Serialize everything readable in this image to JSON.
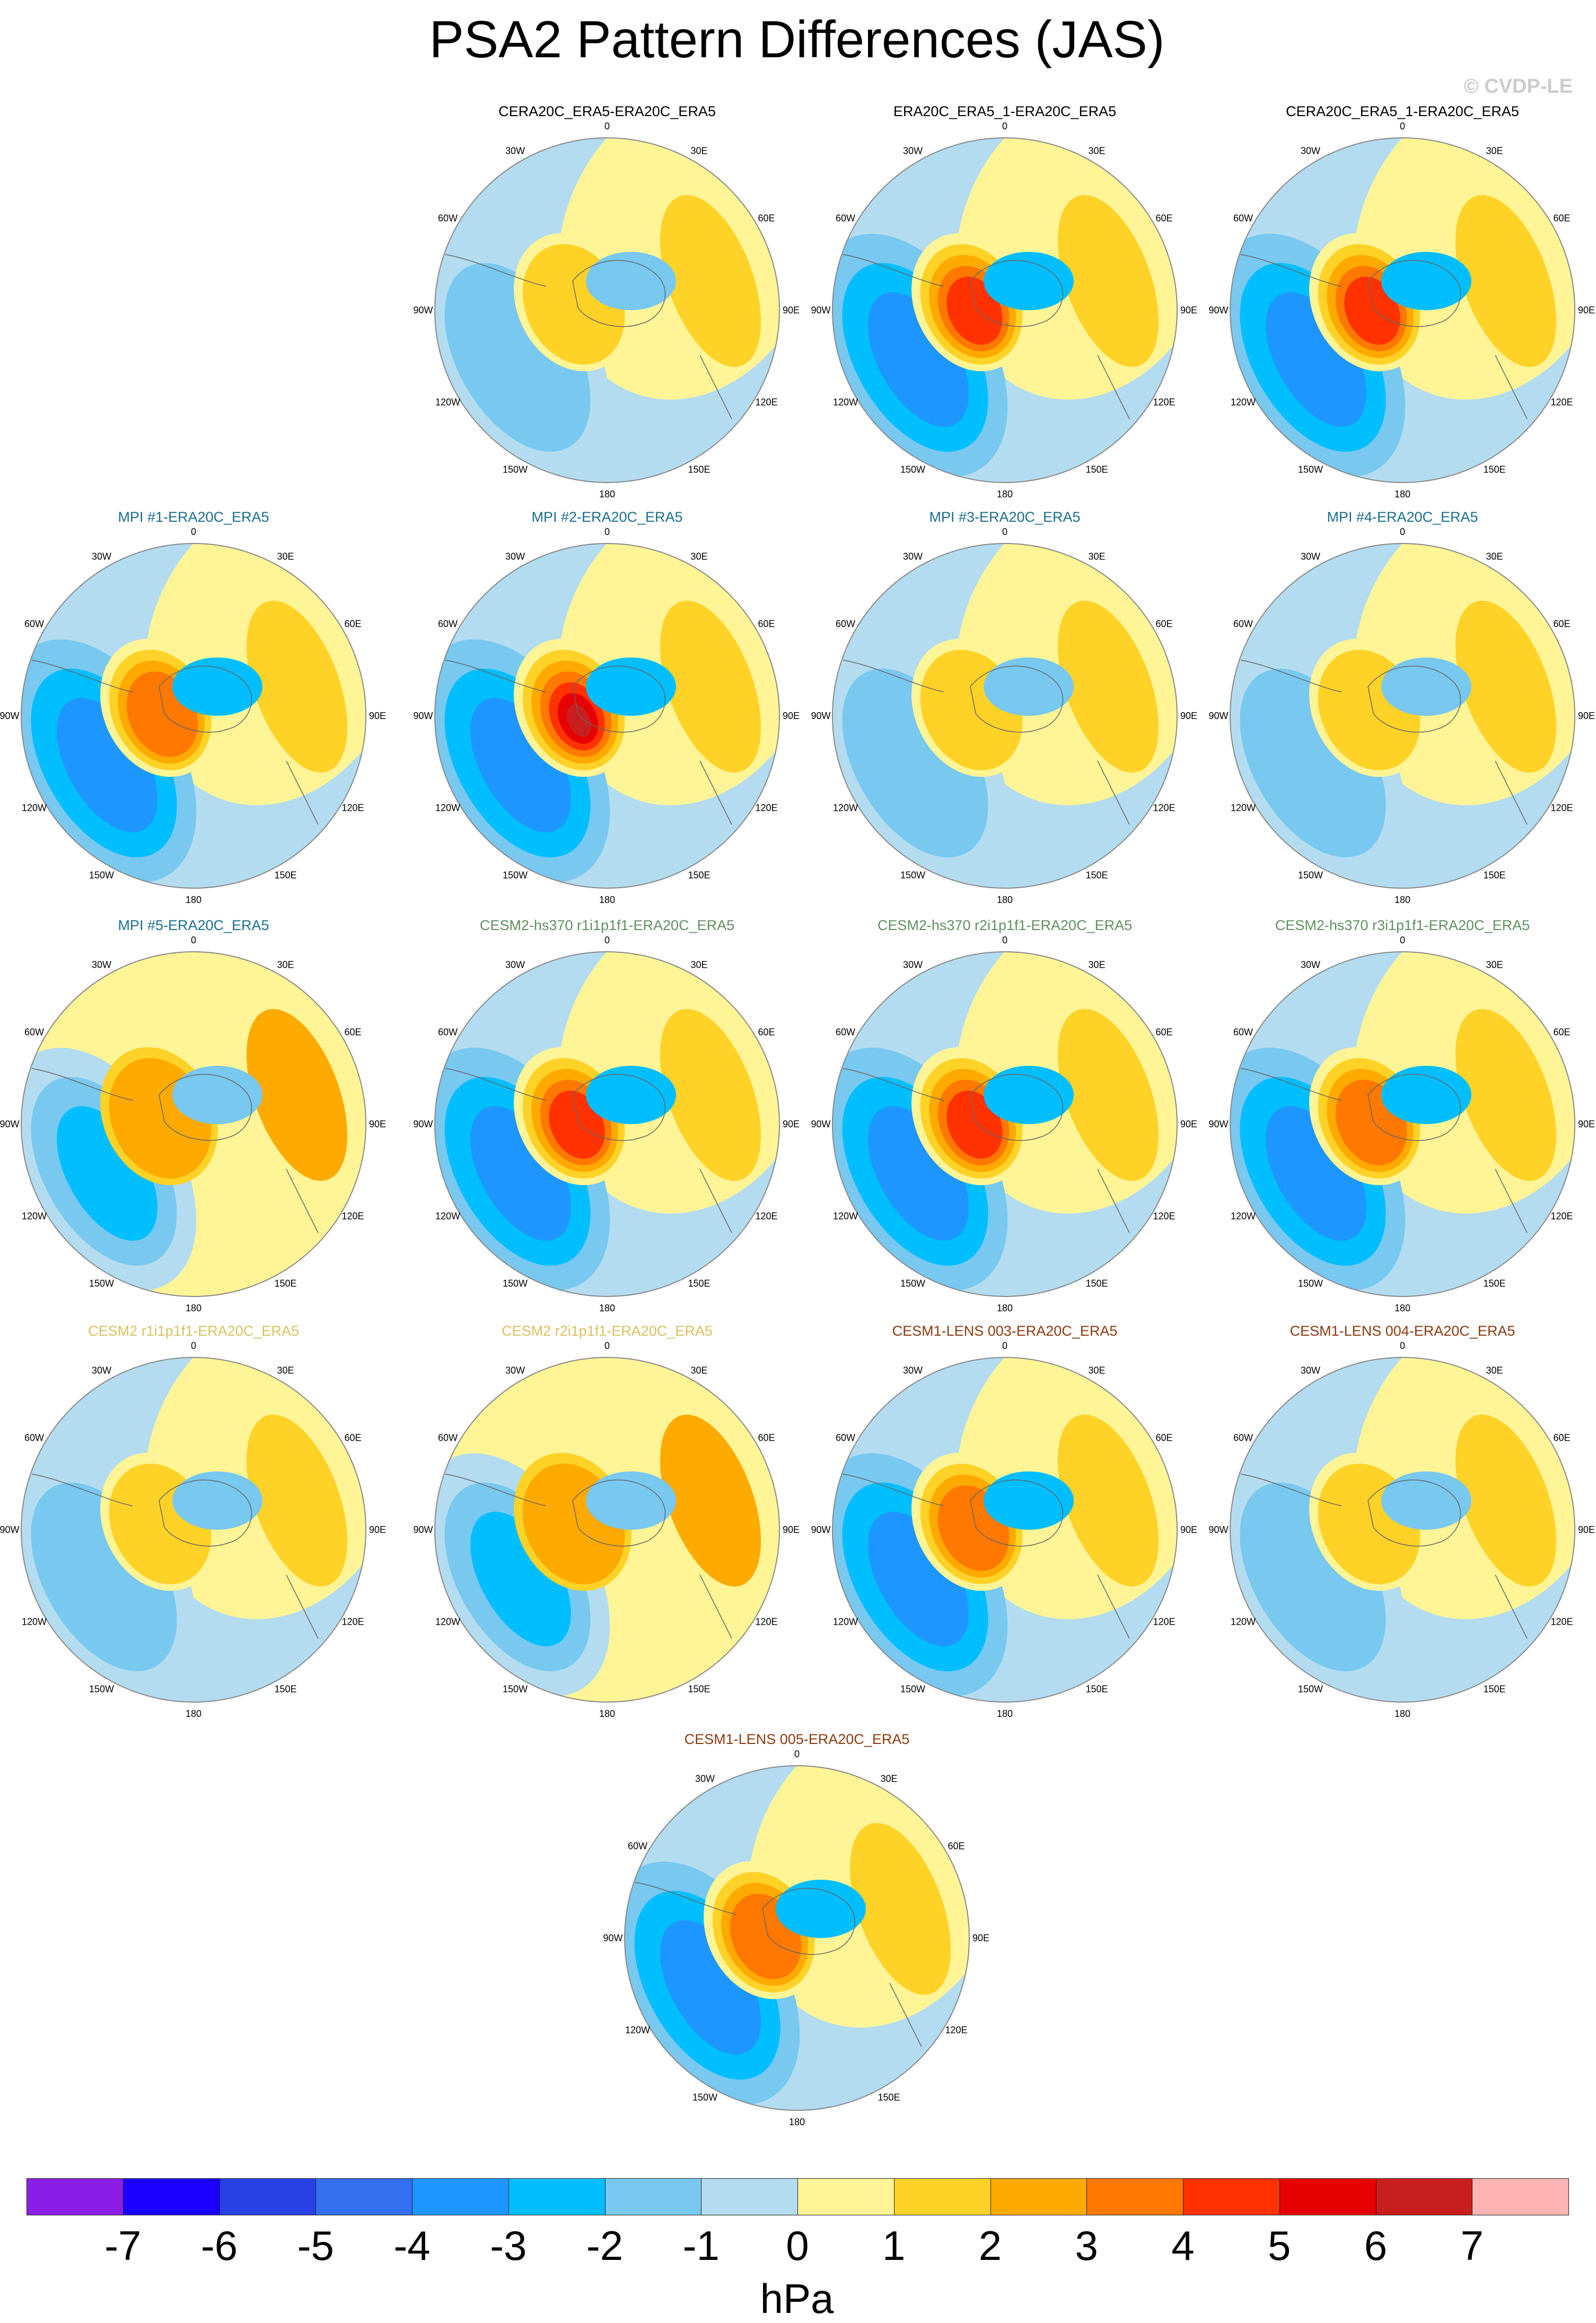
{
  "title": "PSA2 Pattern Differences (JAS)",
  "copyright": "© CVDP-LE",
  "lon_labels": [
    "0",
    "30E",
    "60E",
    "90E",
    "120E",
    "150E",
    "180",
    "150W",
    "120W",
    "90W",
    "60W",
    "30W"
  ],
  "panels": [
    {
      "title": "CERA20C_ERA5-ERA20C_ERA5",
      "color": "#000000",
      "pattern": "weak"
    },
    {
      "title": "ERA20C_ERA5_1-ERA20C_ERA5",
      "color": "#000000",
      "pattern": "strong"
    },
    {
      "title": "CERA20C_ERA5_1-ERA20C_ERA5",
      "color": "#000000",
      "pattern": "strong"
    },
    {
      "title": "MPI #1-ERA20C_ERA5",
      "color": "#1a6e8e",
      "pattern": "moderate"
    },
    {
      "title": "MPI #2-ERA20C_ERA5",
      "color": "#1a6e8e",
      "pattern": "strongest"
    },
    {
      "title": "MPI #3-ERA20C_ERA5",
      "color": "#1a6e8e",
      "pattern": "weak"
    },
    {
      "title": "MPI #4-ERA20C_ERA5",
      "color": "#1a6e8e",
      "pattern": "weak"
    },
    {
      "title": "MPI #5-ERA20C_ERA5",
      "color": "#1a6e8e",
      "pattern": "wave"
    },
    {
      "title": "CESM2-hs370 r1i1p1f1-ERA20C_ERA5",
      "color": "#5f8f5f",
      "pattern": "strong"
    },
    {
      "title": "CESM2-hs370 r2i1p1f1-ERA20C_ERA5",
      "color": "#5f8f5f",
      "pattern": "strong"
    },
    {
      "title": "CESM2-hs370 r3i1p1f1-ERA20C_ERA5",
      "color": "#5f8f5f",
      "pattern": "moderate"
    },
    {
      "title": "CESM2 r1i1p1f1-ERA20C_ERA5",
      "color": "#d9c060",
      "pattern": "weak"
    },
    {
      "title": "CESM2 r2i1p1f1-ERA20C_ERA5",
      "color": "#d9c060",
      "pattern": "wave"
    },
    {
      "title": "CESM1-LENS 003-ERA20C_ERA5",
      "color": "#8b3a10",
      "pattern": "moderate"
    },
    {
      "title": "CESM1-LENS 004-ERA20C_ERA5",
      "color": "#8b3a10",
      "pattern": "weak"
    },
    {
      "title": "CESM1-LENS 005-ERA20C_ERA5",
      "color": "#8b3a10",
      "pattern": "moderate"
    }
  ],
  "colorbar": {
    "colors": [
      "#8b1ee6",
      "#1a00ff",
      "#2841e6",
      "#3370f0",
      "#1e96ff",
      "#00beff",
      "#78c8f0",
      "#b4dcf0",
      "#fff596",
      "#ffd228",
      "#ffaa00",
      "#ff7800",
      "#ff3200",
      "#e60000",
      "#c81e1e",
      "#ffb4b4"
    ],
    "ticks": [
      "-7",
      "-6",
      "-5",
      "-4",
      "-3",
      "-2",
      "-1",
      "0",
      "1",
      "2",
      "3",
      "4",
      "5",
      "6",
      "7"
    ],
    "units": "hPa"
  }
}
